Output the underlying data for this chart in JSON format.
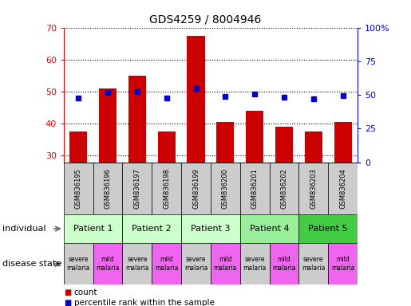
{
  "title": "GDS4259 / 8004946",
  "samples": [
    "GSM836195",
    "GSM836196",
    "GSM836197",
    "GSM836198",
    "GSM836199",
    "GSM836200",
    "GSM836201",
    "GSM836202",
    "GSM836203",
    "GSM836204"
  ],
  "counts": [
    37.5,
    51.0,
    55.0,
    37.5,
    67.5,
    40.5,
    44.0,
    39.0,
    37.5,
    40.5
  ],
  "percentiles": [
    47.5,
    52.0,
    52.5,
    47.5,
    55.0,
    49.0,
    50.5,
    48.5,
    47.0,
    49.5
  ],
  "ylim_left": [
    28,
    70
  ],
  "ylim_right": [
    0,
    100
  ],
  "yticks_left": [
    30,
    40,
    50,
    60,
    70
  ],
  "yticks_right": [
    0,
    25,
    50,
    75,
    100
  ],
  "ytick_labels_right": [
    "0",
    "25",
    "50",
    "75",
    "100%"
  ],
  "bar_color": "#cc0000",
  "dot_color": "#0000cc",
  "patients": [
    {
      "label": "Patient 1",
      "cols": [
        0,
        1
      ],
      "color": "#ccffcc"
    },
    {
      "label": "Patient 2",
      "cols": [
        2,
        3
      ],
      "color": "#ccffcc"
    },
    {
      "label": "Patient 3",
      "cols": [
        4,
        5
      ],
      "color": "#ccffcc"
    },
    {
      "label": "Patient 4",
      "cols": [
        6,
        7
      ],
      "color": "#99ee99"
    },
    {
      "label": "Patient 5",
      "cols": [
        8,
        9
      ],
      "color": "#44cc44"
    }
  ],
  "disease_states": [
    {
      "label": "severe\nmalaria",
      "col": 0,
      "color": "#cccccc"
    },
    {
      "label": "mild\nmalaria",
      "col": 1,
      "color": "#ee66ee"
    },
    {
      "label": "severe\nmalaria",
      "col": 2,
      "color": "#cccccc"
    },
    {
      "label": "mild\nmalaria",
      "col": 3,
      "color": "#ee66ee"
    },
    {
      "label": "severe\nmalaria",
      "col": 4,
      "color": "#cccccc"
    },
    {
      "label": "mild\nmalaria",
      "col": 5,
      "color": "#ee66ee"
    },
    {
      "label": "severe\nmalaria",
      "col": 6,
      "color": "#cccccc"
    },
    {
      "label": "mild\nmalaria",
      "col": 7,
      "color": "#ee66ee"
    },
    {
      "label": "severe\nmalaria",
      "col": 8,
      "color": "#cccccc"
    },
    {
      "label": "mild\nmalaria",
      "col": 9,
      "color": "#ee66ee"
    }
  ],
  "sample_bg_color": "#cccccc",
  "legend_count_label": "count",
  "legend_percentile_label": "percentile rank within the sample",
  "individual_label": "individual",
  "disease_label": "disease state"
}
